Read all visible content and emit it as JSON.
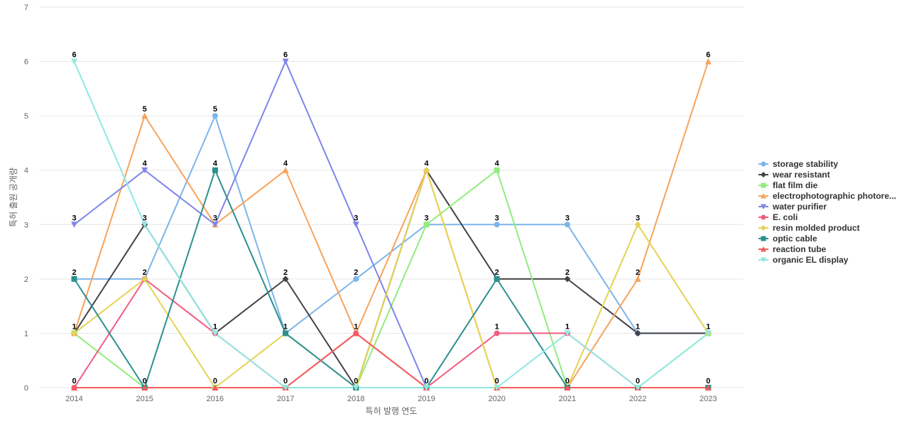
{
  "chart_data": {
    "type": "line",
    "title": "",
    "xlabel": "특허 발행 연도",
    "ylabel": "특허 출원 공개량",
    "x": [
      "2014",
      "2015",
      "2016",
      "2017",
      "2018",
      "2019",
      "2020",
      "2021",
      "2022",
      "2023"
    ],
    "ylim": [
      0,
      7
    ],
    "yticks": [
      0,
      1,
      2,
      3,
      4,
      5,
      6,
      7
    ],
    "grid": true,
    "legend_position": "right",
    "series": [
      {
        "name": "storage stability",
        "color": "#7cb5ec",
        "marker": "circle",
        "values": [
          2,
          2,
          5,
          1,
          2,
          3,
          3,
          3,
          1,
          1
        ]
      },
      {
        "name": "wear resistant",
        "color": "#434348",
        "marker": "diamond",
        "values": [
          1,
          3,
          1,
          2,
          0,
          4,
          2,
          2,
          1,
          1
        ]
      },
      {
        "name": "flat film die",
        "color": "#90ed7d",
        "marker": "square",
        "values": [
          1,
          0,
          0,
          0,
          0,
          3,
          4,
          0,
          0,
          1
        ]
      },
      {
        "name": "electrophotographic photore...",
        "color": "#f7a35c",
        "marker": "triangle",
        "values": [
          1,
          5,
          3,
          4,
          1,
          4,
          0,
          0,
          2,
          6
        ]
      },
      {
        "name": "water purifier",
        "color": "#8085e9",
        "marker": "triangle-down",
        "values": [
          3,
          4,
          3,
          6,
          3,
          0,
          0,
          0,
          0,
          0
        ]
      },
      {
        "name": "E. coli",
        "color": "#f15c80",
        "marker": "circle",
        "values": [
          0,
          2,
          1,
          0,
          1,
          0,
          1,
          1,
          0,
          0
        ]
      },
      {
        "name": "resin molded product",
        "color": "#e4d354",
        "marker": "diamond",
        "values": [
          1,
          2,
          0,
          1,
          0,
          4,
          0,
          0,
          3,
          1
        ]
      },
      {
        "name": "optic cable",
        "color": "#2b908f",
        "marker": "square",
        "values": [
          2,
          0,
          4,
          1,
          0,
          0,
          2,
          0,
          0,
          0
        ]
      },
      {
        "name": "reaction tube",
        "color": "#f45b5b",
        "marker": "triangle",
        "values": [
          0,
          0,
          0,
          0,
          1,
          0,
          0,
          0,
          0,
          0
        ]
      },
      {
        "name": "organic EL display",
        "color": "#91e8e1",
        "marker": "triangle-down",
        "values": [
          6,
          3,
          1,
          0,
          0,
          0,
          0,
          1,
          0,
          1
        ]
      }
    ],
    "data_labels": [
      {
        "x": "2014",
        "values": [
          6,
          3,
          2,
          1,
          0
        ]
      },
      {
        "x": "2015",
        "values": [
          5,
          4,
          3,
          2,
          0
        ]
      },
      {
        "x": "2016",
        "values": [
          5,
          4,
          3,
          1,
          0
        ]
      },
      {
        "x": "2017",
        "values": [
          6,
          4,
          2,
          1,
          0
        ]
      },
      {
        "x": "2018",
        "values": [
          3,
          2,
          1,
          0
        ]
      },
      {
        "x": "2019",
        "values": [
          4,
          3,
          0
        ]
      },
      {
        "x": "2020",
        "values": [
          4,
          3,
          2,
          1,
          0
        ]
      },
      {
        "x": "2021",
        "values": [
          3,
          2,
          1,
          0
        ]
      },
      {
        "x": "2022",
        "values": [
          3,
          2,
          1,
          0
        ]
      },
      {
        "x": "2023",
        "values": [
          6,
          1,
          0
        ]
      }
    ]
  }
}
